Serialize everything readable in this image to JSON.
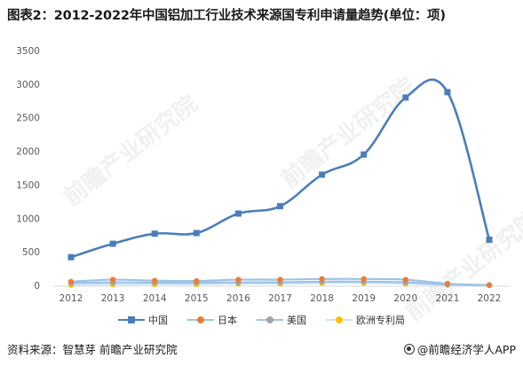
{
  "title": "图表2：2012-2022年中国铝加工行业技术来源国专利申请量趋势(单位：项)",
  "source": "资料来源：智慧芽 前瞻产业研究院",
  "brand": "@前瞻经济学人APP",
  "watermarks": [
    "前瞻产业研究院",
    "前瞻产业研究院",
    "前瞻产业研究院"
  ],
  "colors": {
    "china": "#4a7ebb",
    "japan": "#ed7d31",
    "usa": "#a5a5a5",
    "europe": "#ffc000",
    "lower_series_line": "#9dc3e6",
    "grid": "#d9d9d9"
  },
  "chart_data": {
    "type": "line",
    "title": "图表2：2012-2022年中国铝加工行业技术来源国专利申请量趋势(单位：项)",
    "xlabel": "",
    "ylabel": "",
    "ylim": [
      0,
      3500
    ],
    "yticks": [
      "0",
      "500",
      "1000",
      "1500",
      "2000",
      "2500",
      "3000",
      "3500"
    ],
    "grid": false,
    "legend_position": "bottom",
    "categories": [
      "2012",
      "2013",
      "2014",
      "2015",
      "2016",
      "2017",
      "2018",
      "2019",
      "2020",
      "2021",
      "2022"
    ],
    "series": [
      {
        "name": "中国",
        "marker": "square",
        "values": [
          420,
          620,
          770,
          780,
          1070,
          1180,
          1650,
          1950,
          2800,
          2880,
          680
        ]
      },
      {
        "name": "日本",
        "marker": "circle",
        "values": [
          55,
          85,
          70,
          65,
          85,
          85,
          95,
          95,
          85,
          25,
          5
        ]
      },
      {
        "name": "美国",
        "marker": "circle",
        "values": [
          35,
          45,
          40,
          40,
          45,
          45,
          55,
          55,
          45,
          15,
          3
        ]
      },
      {
        "name": "欧洲专利局",
        "marker": "circle",
        "values": [
          5,
          15,
          15,
          15,
          25,
          25,
          35,
          35,
          25,
          5,
          2
        ]
      }
    ]
  }
}
